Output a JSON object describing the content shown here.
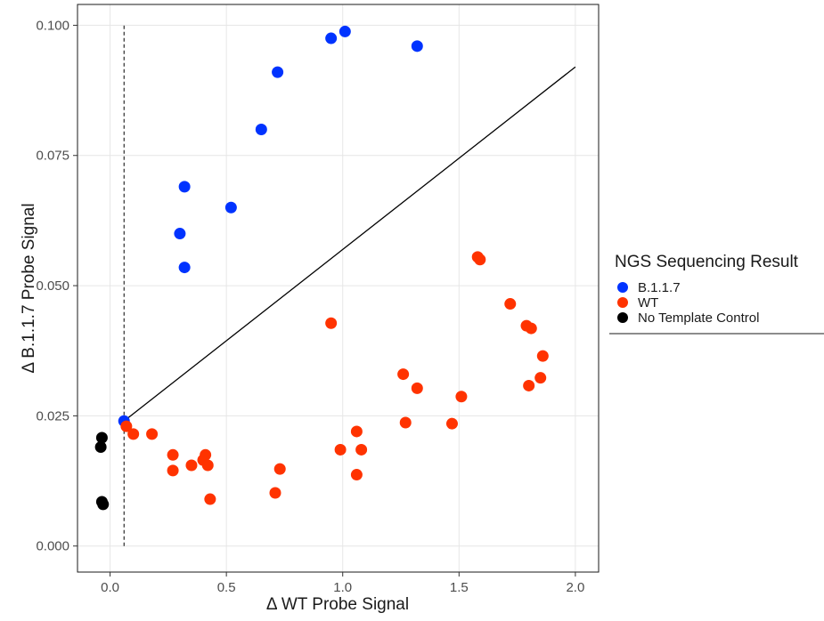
{
  "chart_data": {
    "type": "scatter",
    "title": "",
    "xlabel": "Δ WT Probe Signal",
    "ylabel": "Δ B.1.1.7 Probe Signal",
    "xlim": [
      -0.14,
      2.1
    ],
    "ylim": [
      -0.005,
      0.104
    ],
    "x_ticks": [
      0.0,
      0.5,
      1.0,
      1.5,
      2.0
    ],
    "x_tick_labels": [
      "0.0",
      "0.5",
      "1.0",
      "1.5",
      "2.0"
    ],
    "y_ticks": [
      0.0,
      0.025,
      0.05,
      0.075,
      0.1
    ],
    "y_tick_labels": [
      "0.000",
      "0.025",
      "0.050",
      "0.075",
      "0.100"
    ],
    "grid": true,
    "legend": {
      "title": "NGS Sequencing Result",
      "position": "right"
    },
    "threshold_line": {
      "type": "vertical-dashed",
      "x": 0.06,
      "y_range": [
        0.0,
        0.1
      ]
    },
    "decision_line": {
      "x": [
        0.06,
        2.0
      ],
      "y": [
        0.024,
        0.092
      ]
    },
    "series": [
      {
        "name": "B.1.1.7",
        "color": "#0033ff",
        "points": [
          [
            0.06,
            0.024
          ],
          [
            0.3,
            0.06
          ],
          [
            0.32,
            0.069
          ],
          [
            0.32,
            0.0535
          ],
          [
            0.52,
            0.065
          ],
          [
            0.65,
            0.08
          ],
          [
            0.72,
            0.091
          ],
          [
            0.95,
            0.0975
          ],
          [
            1.01,
            0.0988
          ],
          [
            1.32,
            0.096
          ]
        ]
      },
      {
        "name": "WT",
        "color": "#ff3300",
        "points": [
          [
            0.07,
            0.023
          ],
          [
            0.1,
            0.0215
          ],
          [
            0.18,
            0.0215
          ],
          [
            0.27,
            0.0175
          ],
          [
            0.27,
            0.0145
          ],
          [
            0.35,
            0.0155
          ],
          [
            0.4,
            0.0165
          ],
          [
            0.41,
            0.0175
          ],
          [
            0.42,
            0.0155
          ],
          [
            0.43,
            0.009
          ],
          [
            0.71,
            0.0102
          ],
          [
            0.73,
            0.0148
          ],
          [
            0.95,
            0.0428
          ],
          [
            0.99,
            0.0185
          ],
          [
            1.06,
            0.022
          ],
          [
            1.06,
            0.0137
          ],
          [
            1.08,
            0.0185
          ],
          [
            1.26,
            0.033
          ],
          [
            1.27,
            0.0237
          ],
          [
            1.32,
            0.0303
          ],
          [
            1.47,
            0.0235
          ],
          [
            1.51,
            0.0287
          ],
          [
            1.58,
            0.0555
          ],
          [
            1.59,
            0.055
          ],
          [
            1.72,
            0.0465
          ],
          [
            1.79,
            0.0423
          ],
          [
            1.8,
            0.0308
          ],
          [
            1.81,
            0.0418
          ],
          [
            1.85,
            0.0323
          ],
          [
            1.86,
            0.0365
          ]
        ]
      },
      {
        "name": "No Template Control",
        "color": "#000000",
        "points": [
          [
            -0.04,
            0.019
          ],
          [
            -0.035,
            0.0208
          ],
          [
            -0.035,
            0.0085
          ],
          [
            -0.03,
            0.008
          ]
        ]
      }
    ]
  },
  "colors": {
    "grid": "#e6e6e6",
    "axis": "#1a1a1a"
  }
}
